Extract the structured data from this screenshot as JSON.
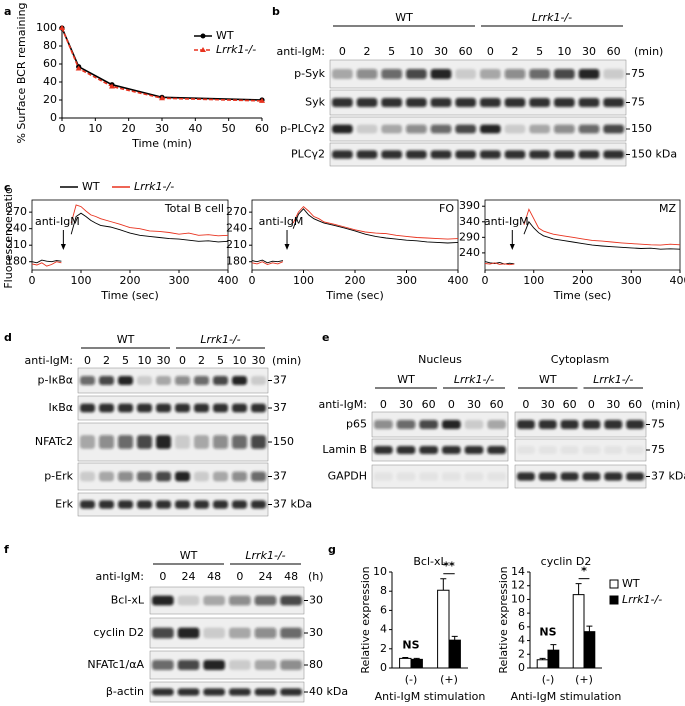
{
  "panel_labels": [
    "a",
    "b",
    "c",
    "d",
    "e",
    "f",
    "g"
  ],
  "chart_data": [
    {
      "type": "line",
      "ylabel": "% Surface BCR remaining",
      "xlabel": "Time (min)",
      "legend": "upper right",
      "xlim": [
        0,
        60
      ],
      "xticks": [
        0,
        10,
        20,
        30,
        40,
        50,
        60
      ],
      "ylim": [
        0,
        100
      ],
      "yticks": [
        0,
        20,
        40,
        60,
        80,
        100
      ],
      "x": [
        0,
        5,
        15,
        30,
        60
      ],
      "series": [
        {
          "name": "WT",
          "color": "#000000",
          "marker": "circle",
          "line_style": "solid",
          "values": [
            100,
            57,
            37,
            23,
            20
          ]
        },
        {
          "name": "Lrrk1-/-",
          "color": "#e8321e",
          "marker": "triangle",
          "line_style": "dashed",
          "values": [
            100,
            55,
            35,
            22,
            19
          ]
        }
      ]
    },
    {
      "type": "line",
      "label": "Total B cell",
      "annotation": "anti-IgM",
      "ylabel": "Fluorescence ratio",
      "xlabel": "Time (sec)",
      "legend": "above",
      "frame": true,
      "xlim": [
        0,
        400
      ],
      "xticks": [
        0,
        100,
        200,
        300,
        400
      ],
      "ylim": [
        165,
        292
      ],
      "yticks": [
        180,
        210,
        240,
        270
      ],
      "x": [
        0,
        10,
        20,
        30,
        40,
        50,
        60,
        70,
        80,
        90,
        100,
        110,
        120,
        130,
        140,
        160,
        180,
        200,
        220,
        240,
        260,
        280,
        300,
        320,
        340,
        360,
        380,
        400
      ],
      "series": [
        {
          "name": "WT",
          "color": "#000000",
          "values": [
            180,
            178,
            183,
            181,
            180,
            182,
            181,
            null,
            230,
            262,
            268,
            262,
            255,
            250,
            246,
            243,
            238,
            232,
            228,
            226,
            224,
            222,
            221,
            219,
            217,
            218,
            216,
            217
          ]
        },
        {
          "name": "Lrrk1-/-",
          "color": "#e8321e",
          "values": [
            176,
            174,
            178,
            172,
            175,
            180,
            178,
            null,
            250,
            283,
            280,
            272,
            265,
            262,
            258,
            253,
            248,
            242,
            240,
            236,
            235,
            233,
            230,
            232,
            228,
            229,
            227,
            228
          ]
        }
      ]
    },
    {
      "type": "line",
      "label": "FO",
      "annotation": "anti-IgM",
      "xlabel": "Time (sec)",
      "frame": true,
      "xlim": [
        0,
        400
      ],
      "xticks": [
        0,
        100,
        200,
        300,
        400
      ],
      "ylim": [
        165,
        292
      ],
      "yticks": [
        180,
        210,
        240,
        270
      ],
      "x": [
        0,
        10,
        20,
        30,
        40,
        50,
        60,
        70,
        80,
        90,
        100,
        110,
        120,
        130,
        140,
        160,
        180,
        200,
        220,
        240,
        260,
        280,
        300,
        320,
        340,
        360,
        380,
        400
      ],
      "series": [
        {
          "color": "#000000",
          "values": [
            182,
            180,
            183,
            178,
            181,
            180,
            182,
            null,
            240,
            266,
            276,
            265,
            258,
            254,
            250,
            246,
            241,
            236,
            230,
            226,
            223,
            221,
            219,
            218,
            216,
            215,
            214,
            215
          ]
        },
        {
          "color": "#e8321e",
          "values": [
            178,
            176,
            180,
            175,
            178,
            176,
            180,
            null,
            250,
            270,
            280,
            272,
            262,
            258,
            252,
            248,
            243,
            238,
            234,
            232,
            231,
            228,
            226,
            224,
            223,
            222,
            221,
            222
          ]
        }
      ]
    },
    {
      "type": "line",
      "label": "MZ",
      "annotation": "anti-IgM",
      "xlabel": "Time (sec)",
      "frame": true,
      "xlim": [
        0,
        400
      ],
      "xticks": [
        0,
        100,
        200,
        300,
        400
      ],
      "ylim": [
        185,
        410
      ],
      "yticks": [
        240,
        290,
        340,
        390
      ],
      "x": [
        0,
        10,
        20,
        30,
        40,
        50,
        60,
        70,
        80,
        90,
        100,
        110,
        120,
        130,
        140,
        160,
        180,
        200,
        220,
        240,
        260,
        280,
        300,
        320,
        340,
        360,
        380,
        400
      ],
      "series": [
        {
          "color": "#000000",
          "values": [
            212,
            208,
            206,
            209,
            204,
            207,
            205,
            null,
            300,
            340,
            320,
            305,
            295,
            290,
            285,
            280,
            275,
            270,
            265,
            262,
            260,
            258,
            256,
            254,
            255,
            252,
            253,
            252
          ]
        },
        {
          "color": "#e8321e",
          "values": [
            206,
            204,
            208,
            203,
            205,
            202,
            204,
            null,
            330,
            380,
            350,
            320,
            310,
            305,
            300,
            295,
            290,
            285,
            280,
            278,
            275,
            272,
            270,
            268,
            266,
            265,
            268,
            266
          ]
        }
      ]
    },
    {
      "type": "bar",
      "title": "Bcl-xL",
      "ylabel": "Relative expression",
      "xlabel": "Anti-IgM stimulation",
      "categories": [
        "(-)",
        "(+)"
      ],
      "ylim": [
        0,
        10
      ],
      "yticks": [
        0,
        2,
        4,
        6,
        8,
        10
      ],
      "significance": [
        "NS",
        "**"
      ],
      "series": [
        {
          "color": "#ffffff",
          "values": [
            1.0,
            8.1
          ],
          "errors": [
            0.1,
            1.2
          ]
        },
        {
          "color": "#000000",
          "values": [
            0.9,
            2.9
          ],
          "errors": [
            0.1,
            0.4
          ]
        }
      ]
    },
    {
      "type": "bar",
      "title": "cyclin D2",
      "ylabel": "Relative expression",
      "xlabel": "Anti-IgM stimulation",
      "legend": "right",
      "categories": [
        "(-)",
        "(+)"
      ],
      "ylim": [
        0,
        14
      ],
      "yticks": [
        0,
        2,
        4,
        6,
        8,
        10,
        12,
        14
      ],
      "significance": [
        "NS",
        "*"
      ],
      "series": [
        {
          "name": "WT",
          "color": "#ffffff",
          "values": [
            1.2,
            10.7
          ],
          "errors": [
            0.2,
            1.6
          ]
        },
        {
          "name": "Lrrk1-/-",
          "color": "#000000",
          "values": [
            2.6,
            5.3
          ],
          "errors": [
            0.8,
            0.8
          ]
        }
      ]
    }
  ],
  "blots": {
    "b": {
      "groups": [
        "WT",
        "Lrrk1-/-"
      ],
      "lane_label": "anti-IgM:",
      "lanes": [
        "0",
        "2",
        "5",
        "10",
        "30",
        "60",
        "0",
        "2",
        "5",
        "10",
        "30",
        "60"
      ],
      "unit": "(min)",
      "row_labels": [
        "p-Syk",
        "Syk",
        "p-PLCγ2",
        "PLCγ2"
      ],
      "markers": [
        "75",
        "75",
        "150",
        "150 kDa"
      ]
    },
    "d": {
      "groups": [
        "WT",
        "Lrrk1-/-"
      ],
      "lane_label": "anti-IgM:",
      "lanes": [
        "0",
        "2",
        "5",
        "10",
        "30",
        "0",
        "2",
        "5",
        "10",
        "30"
      ],
      "unit": "(min)",
      "row_labels": [
        "p-IκBα",
        "IκBα",
        "NFATc2",
        "p-Erk",
        "Erk"
      ],
      "markers": [
        "37",
        "37",
        "150",
        "37",
        "37 kDa"
      ]
    },
    "e": {
      "lane_label": "anti-IgM:",
      "unit": "(min)",
      "row_labels": [
        "p65",
        "Lamin B",
        "GAPDH"
      ],
      "compartments": [
        {
          "title": "Nucleus",
          "groups": [
            "WT",
            "Lrrk1-/-"
          ],
          "lanes": [
            "0",
            "30",
            "60",
            "0",
            "30",
            "60"
          ]
        },
        {
          "title": "Cytoplasm",
          "groups": [
            "WT",
            "Lrrk1-/-"
          ],
          "lanes": [
            "0",
            "30",
            "60",
            "0",
            "30",
            "60"
          ],
          "markers": [
            "75",
            "75",
            "37 kDa"
          ]
        }
      ]
    },
    "f": {
      "groups": [
        "WT",
        "Lrrk1-/-"
      ],
      "lane_label": "anti-IgM:",
      "lanes": [
        "0",
        "24",
        "48",
        "0",
        "24",
        "48"
      ],
      "unit": "(h)",
      "row_labels": [
        "Bcl-xL",
        "cyclin D2",
        "NFATc1/αA",
        "β-actin"
      ],
      "markers": [
        "30",
        "30",
        "80",
        "40 kDa"
      ]
    }
  }
}
